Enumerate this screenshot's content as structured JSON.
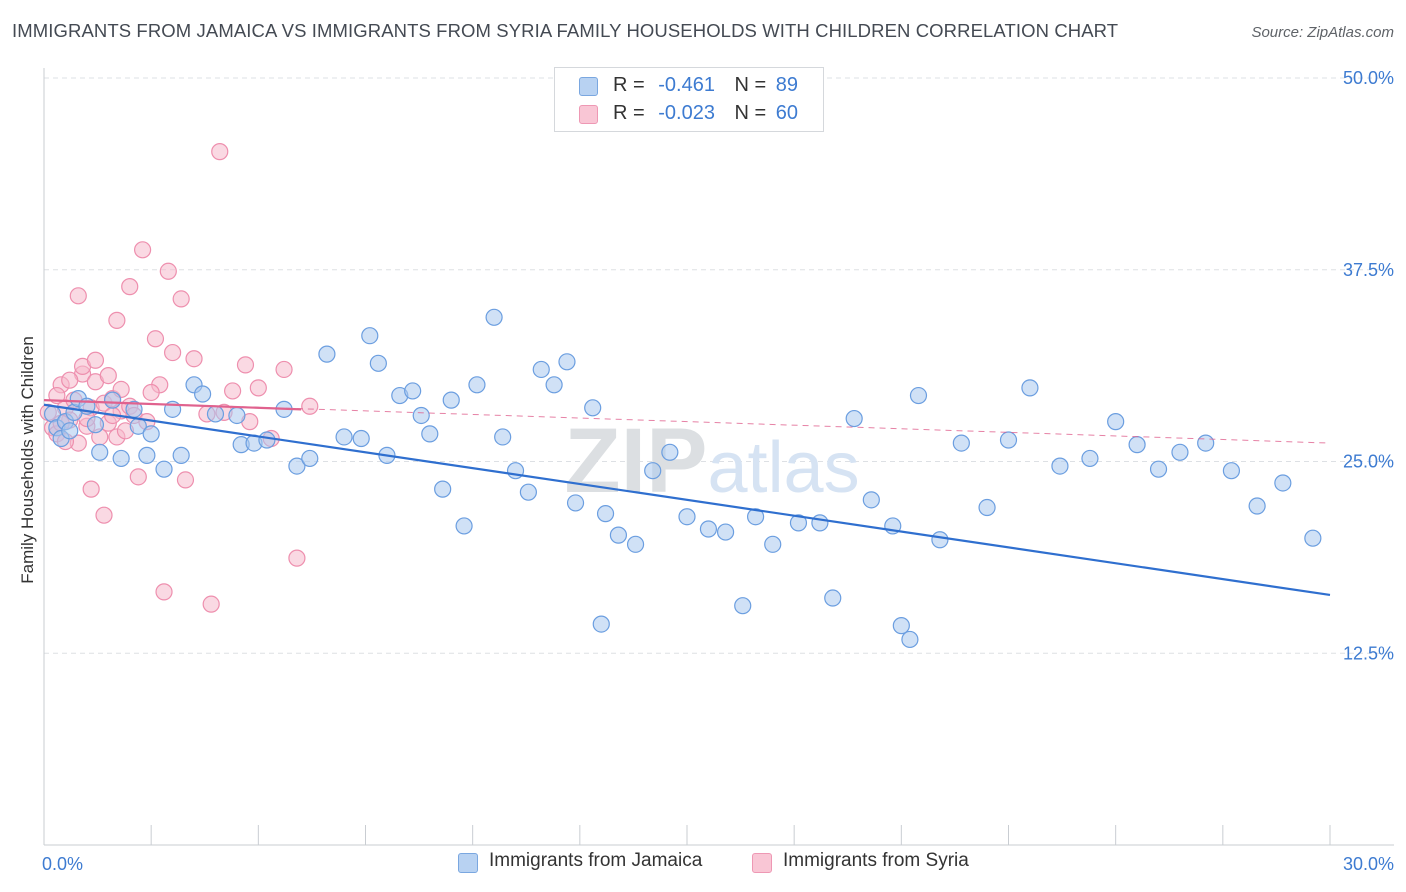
{
  "header": {
    "title": "IMMIGRANTS FROM JAMAICA VS IMMIGRANTS FROM SYRIA FAMILY HOUSEHOLDS WITH CHILDREN CORRELATION CHART",
    "source": "Source: ZipAtlas.com"
  },
  "watermark": "ZIPatlas",
  "legend": {
    "r_label": "R =",
    "n_label": "N =",
    "jamaica": {
      "r": "-0.461",
      "n": "89"
    },
    "syria": {
      "r": "-0.023",
      "n": "60"
    }
  },
  "bottom_legend": {
    "jamaica": "Immigrants from Jamaica",
    "syria": "Immigrants from Syria"
  },
  "colors": {
    "jamaica_fill": "#a9c8ee",
    "jamaica_stroke": "#6b9ee0",
    "jamaica_line": "#2f6fcf",
    "syria_fill": "#f6b9cc",
    "syria_stroke": "#ee8fae",
    "syria_line": "#e0628e",
    "tick_text": "#3d7bd1",
    "grid": "#dde0e4"
  },
  "chart_data": {
    "type": "scatter",
    "title": "IMMIGRANTS FROM JAMAICA VS IMMIGRANTS FROM SYRIA FAMILY HOUSEHOLDS WITH CHILDREN CORRELATION CHART",
    "xlabel": "",
    "ylabel": "Family Households with Children",
    "xlim": [
      0,
      30
    ],
    "ylim": [
      0,
      50
    ],
    "x_tick_labels": [
      {
        "value": 0,
        "label": "0.0%"
      },
      {
        "value": 30,
        "label": "30.0%"
      }
    ],
    "y_tick_labels": [
      {
        "value": 12.5,
        "label": "12.5%"
      },
      {
        "value": 25,
        "label": "25.0%"
      },
      {
        "value": 37.5,
        "label": "37.5%"
      },
      {
        "value": 50,
        "label": "50.0%"
      }
    ],
    "series": [
      {
        "name": "Immigrants from Jamaica",
        "trend": {
          "x": [
            0,
            30
          ],
          "y": [
            28.7,
            16.3
          ]
        },
        "points": [
          [
            0.2,
            28.1
          ],
          [
            0.3,
            27.2
          ],
          [
            0.4,
            26.5
          ],
          [
            0.5,
            27.6
          ],
          [
            0.6,
            27.0
          ],
          [
            0.7,
            28.2
          ],
          [
            0.8,
            29.1
          ],
          [
            1.0,
            28.6
          ],
          [
            1.2,
            27.4
          ],
          [
            1.3,
            25.6
          ],
          [
            1.6,
            29.0
          ],
          [
            1.8,
            25.2
          ],
          [
            2.1,
            28.4
          ],
          [
            2.2,
            27.3
          ],
          [
            2.4,
            25.4
          ],
          [
            2.5,
            26.8
          ],
          [
            2.8,
            24.5
          ],
          [
            3.0,
            28.4
          ],
          [
            3.2,
            25.4
          ],
          [
            3.5,
            30.0
          ],
          [
            3.7,
            29.4
          ],
          [
            4.0,
            28.1
          ],
          [
            4.5,
            28.0
          ],
          [
            4.6,
            26.1
          ],
          [
            4.9,
            26.2
          ],
          [
            5.2,
            26.4
          ],
          [
            5.6,
            28.4
          ],
          [
            5.9,
            24.7
          ],
          [
            6.2,
            25.2
          ],
          [
            6.6,
            32.0
          ],
          [
            7.0,
            26.6
          ],
          [
            7.4,
            26.5
          ],
          [
            7.6,
            33.2
          ],
          [
            7.8,
            31.4
          ],
          [
            8.0,
            25.4
          ],
          [
            8.3,
            29.3
          ],
          [
            8.6,
            29.6
          ],
          [
            8.8,
            28.0
          ],
          [
            9.0,
            26.8
          ],
          [
            9.3,
            23.2
          ],
          [
            9.5,
            29.0
          ],
          [
            9.8,
            20.8
          ],
          [
            10.1,
            30.0
          ],
          [
            10.5,
            34.4
          ],
          [
            10.7,
            26.6
          ],
          [
            11.0,
            24.4
          ],
          [
            11.3,
            23.0
          ],
          [
            11.6,
            31.0
          ],
          [
            11.9,
            30.0
          ],
          [
            12.2,
            31.5
          ],
          [
            12.4,
            22.3
          ],
          [
            12.8,
            28.5
          ],
          [
            13.1,
            21.6
          ],
          [
            13.4,
            20.2
          ],
          [
            13.8,
            19.6
          ],
          [
            14.2,
            24.4
          ],
          [
            14.6,
            25.6
          ],
          [
            15.0,
            21.4
          ],
          [
            15.5,
            20.6
          ],
          [
            15.9,
            20.4
          ],
          [
            16.3,
            15.6
          ],
          [
            16.6,
            21.4
          ],
          [
            17.0,
            19.6
          ],
          [
            17.6,
            21.0
          ],
          [
            18.1,
            21.0
          ],
          [
            18.4,
            16.1
          ],
          [
            18.9,
            27.8
          ],
          [
            19.3,
            22.5
          ],
          [
            19.8,
            20.8
          ],
          [
            20.4,
            29.3
          ],
          [
            20.9,
            19.9
          ],
          [
            21.4,
            26.2
          ],
          [
            22.0,
            22.0
          ],
          [
            22.5,
            26.4
          ],
          [
            23.0,
            29.8
          ],
          [
            23.7,
            24.7
          ],
          [
            24.4,
            25.2
          ],
          [
            25.0,
            27.6
          ],
          [
            25.5,
            26.1
          ],
          [
            26.0,
            24.5
          ],
          [
            26.5,
            25.6
          ],
          [
            27.1,
            26.2
          ],
          [
            27.7,
            24.4
          ],
          [
            28.3,
            22.1
          ],
          [
            28.9,
            23.6
          ],
          [
            20.2,
            13.4
          ],
          [
            20.0,
            14.3
          ],
          [
            13.0,
            14.4
          ],
          [
            29.6,
            20.0
          ]
        ]
      },
      {
        "name": "Immigrants from Syria",
        "trend": {
          "x": [
            0,
            6
          ],
          "y": [
            29.0,
            28.4
          ]
        },
        "points": [
          [
            0.1,
            28.2
          ],
          [
            0.2,
            27.2
          ],
          [
            0.3,
            26.8
          ],
          [
            0.4,
            30.0
          ],
          [
            0.5,
            28.5
          ],
          [
            0.6,
            27.7
          ],
          [
            0.7,
            29.0
          ],
          [
            0.8,
            26.2
          ],
          [
            0.9,
            30.7
          ],
          [
            1.0,
            27.3
          ],
          [
            1.1,
            28.5
          ],
          [
            1.2,
            30.2
          ],
          [
            1.3,
            26.6
          ],
          [
            1.4,
            28.8
          ],
          [
            1.5,
            27.5
          ],
          [
            1.6,
            29.1
          ],
          [
            1.7,
            26.6
          ],
          [
            1.8,
            28.3
          ],
          [
            1.9,
            27.0
          ],
          [
            2.0,
            28.6
          ],
          [
            0.3,
            29.3
          ],
          [
            0.6,
            30.3
          ],
          [
            0.9,
            31.2
          ],
          [
            1.2,
            31.6
          ],
          [
            1.5,
            30.6
          ],
          [
            1.8,
            29.7
          ],
          [
            2.1,
            28.0
          ],
          [
            2.4,
            27.6
          ],
          [
            2.7,
            30.0
          ],
          [
            3.0,
            32.1
          ],
          [
            0.8,
            35.8
          ],
          [
            1.1,
            23.2
          ],
          [
            1.4,
            21.5
          ],
          [
            1.7,
            34.2
          ],
          [
            2.0,
            36.4
          ],
          [
            2.3,
            38.8
          ],
          [
            2.6,
            33.0
          ],
          [
            2.9,
            37.4
          ],
          [
            3.2,
            35.6
          ],
          [
            3.5,
            31.7
          ],
          [
            3.8,
            28.1
          ],
          [
            4.1,
            45.2
          ],
          [
            4.4,
            29.6
          ],
          [
            4.7,
            31.3
          ],
          [
            5.0,
            29.8
          ],
          [
            5.3,
            26.5
          ],
          [
            5.6,
            31.0
          ],
          [
            5.9,
            18.7
          ],
          [
            6.2,
            28.6
          ],
          [
            0.5,
            26.3
          ],
          [
            1.0,
            27.8
          ],
          [
            1.6,
            28.0
          ],
          [
            2.2,
            24.0
          ],
          [
            2.8,
            16.5
          ],
          [
            3.3,
            23.8
          ],
          [
            3.9,
            15.7
          ],
          [
            4.2,
            28.2
          ],
          [
            4.8,
            27.6
          ],
          [
            0.4,
            27.5
          ],
          [
            2.5,
            29.5
          ]
        ]
      }
    ],
    "extra_trend": {
      "series": "Immigrants from Syria",
      "style": "dashed",
      "x": [
        0,
        30
      ],
      "y": [
        29.0,
        26.2
      ]
    }
  }
}
